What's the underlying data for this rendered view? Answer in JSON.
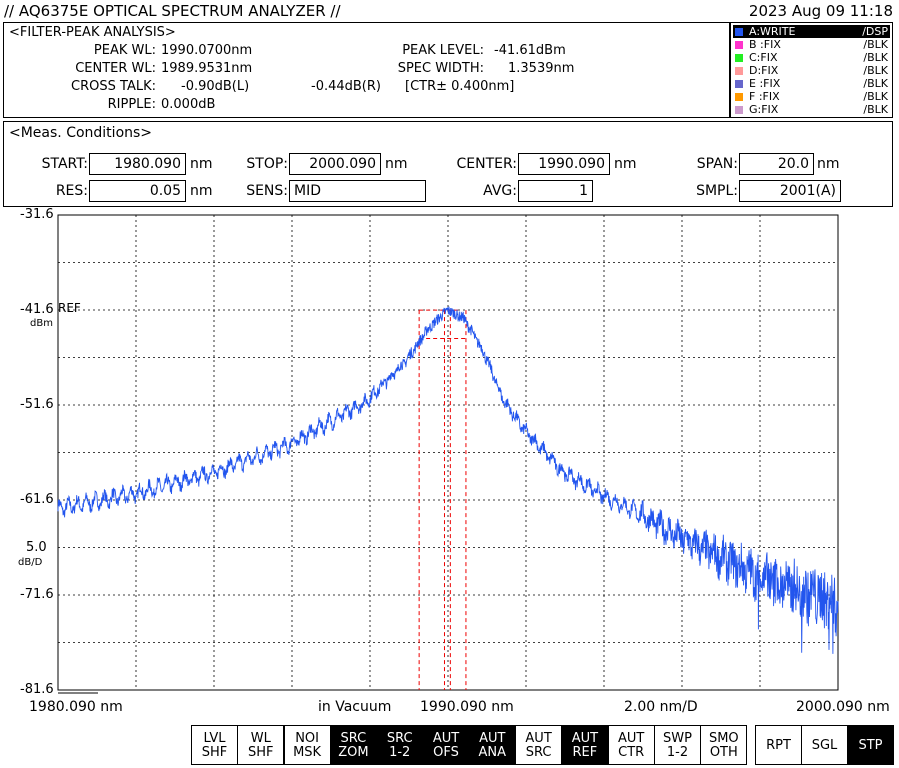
{
  "header": {
    "title": "// AQ6375E OPTICAL SPECTRUM ANALYZER //",
    "datetime": "2023 Aug 09 11:18"
  },
  "analysis": {
    "title": "<FILTER-PEAK ANALYSIS>",
    "peak_wl_label": "PEAK WL:",
    "peak_wl": "1990.0700nm",
    "center_wl_label": "CENTER WL:",
    "center_wl": "1989.9531nm",
    "cross_talk_label": "CROSS TALK:",
    "cross_talk_l": "-0.90dB(L)",
    "cross_talk_r": "-0.44dB(R)",
    "ctr": "[CTR± 0.400nm]",
    "ripple_label": "RIPPLE:",
    "ripple": "0.000dB",
    "peak_level_label": "PEAK LEVEL:",
    "peak_level": "-41.61dBm",
    "spec_width_label": "SPEC WIDTH:",
    "spec_width": "1.3539nm"
  },
  "traces": [
    {
      "name": "A:WRITE",
      "state": "/DSP",
      "color": "#2255ee",
      "active": true
    },
    {
      "name": "B :FIX",
      "state": "/BLK",
      "color": "#ff33cc"
    },
    {
      "name": "C:FIX",
      "state": "/BLK",
      "color": "#22ee22"
    },
    {
      "name": "D:FIX",
      "state": "/BLK",
      "color": "#ff9999"
    },
    {
      "name": "E :FIX",
      "state": "/BLK",
      "color": "#6666cc"
    },
    {
      "name": "F :FIX",
      "state": "/BLK",
      "color": "#ff9900"
    },
    {
      "name": "G:FIX",
      "state": "/BLK",
      "color": "#cc99cc"
    }
  ],
  "conditions": {
    "title": "<Meas. Conditions>",
    "start_label": "START:",
    "start": "1980.090",
    "start_unit": "nm",
    "stop_label": "STOP:",
    "stop": "2000.090",
    "stop_unit": "nm",
    "center_label": "CENTER:",
    "center": "1990.090",
    "center_unit": "nm",
    "span_label": "SPAN:",
    "span": "20.0",
    "span_unit": "nm",
    "res_label": "RES:",
    "res": "0.05",
    "res_unit": "nm",
    "sens_label": "SENS:",
    "sens": "MID",
    "avg_label": "AVG:",
    "avg": "1",
    "smpl_label": "SMPL:",
    "smpl": "2001(A)"
  },
  "chart_data": {
    "type": "line",
    "y_ticks": [
      "-31.6",
      "-41.6",
      "-51.6",
      "-61.6",
      "-71.6",
      "-81.6"
    ],
    "ref_label": "REF",
    "y_unit": "dBm",
    "scale": "5.0",
    "scale_unit": "dB/D",
    "ylim": [
      -81.6,
      -31.6
    ],
    "xlim": [
      1980.09,
      2000.09
    ],
    "x_start": "1980.090 nm",
    "x_center": "1990.090 nm",
    "x_stop": "2000.090 nm",
    "x_div": "2.00 nm/D",
    "medium": "in Vacuum",
    "series": [
      {
        "name": "A:WRITE",
        "color": "#2255ee",
        "x": [
          1980.09,
          1982,
          1984,
          1986,
          1988,
          1989,
          1989.6,
          1990.07,
          1990.5,
          1991,
          1991.5,
          1992,
          1993,
          1994,
          1995,
          1996,
          1997,
          1998,
          1999,
          2000.09
        ],
        "y": [
          -62.5,
          -61,
          -58.8,
          -55.8,
          -51.2,
          -47,
          -43.5,
          -41.61,
          -42.5,
          -46,
          -51,
          -54,
          -58.5,
          -61,
          -63,
          -65.5,
          -67.5,
          -69.5,
          -71,
          -72.5
        ]
      }
    ],
    "markers_nm": [
      1989.35,
      1990.0,
      1990.15,
      1990.55
    ]
  },
  "softkeys": [
    {
      "l1": "LVL",
      "l2": "SHF",
      "on": false
    },
    {
      "l1": "WL",
      "l2": "SHF",
      "on": false
    },
    {
      "l1": "NOI",
      "l2": "MSK",
      "on": false
    },
    {
      "l1": "SRC",
      "l2": "ZOM",
      "on": true
    },
    {
      "l1": "SRC",
      "l2": "1-2",
      "on": true
    },
    {
      "l1": "AUT",
      "l2": "OFS",
      "on": true
    },
    {
      "l1": "AUT",
      "l2": "ANA",
      "on": true
    },
    {
      "l1": "AUT",
      "l2": "SRC",
      "on": false
    },
    {
      "l1": "AUT",
      "l2": "REF",
      "on": true
    },
    {
      "l1": "AUT",
      "l2": "CTR",
      "on": false
    },
    {
      "l1": "SWP",
      "l2": "1-2",
      "on": false
    },
    {
      "l1": "SMO",
      "l2": "OTH",
      "on": false
    }
  ],
  "sweep": [
    {
      "label": "RPT",
      "on": false
    },
    {
      "label": "SGL",
      "on": false
    },
    {
      "label": "STP",
      "on": true
    }
  ]
}
